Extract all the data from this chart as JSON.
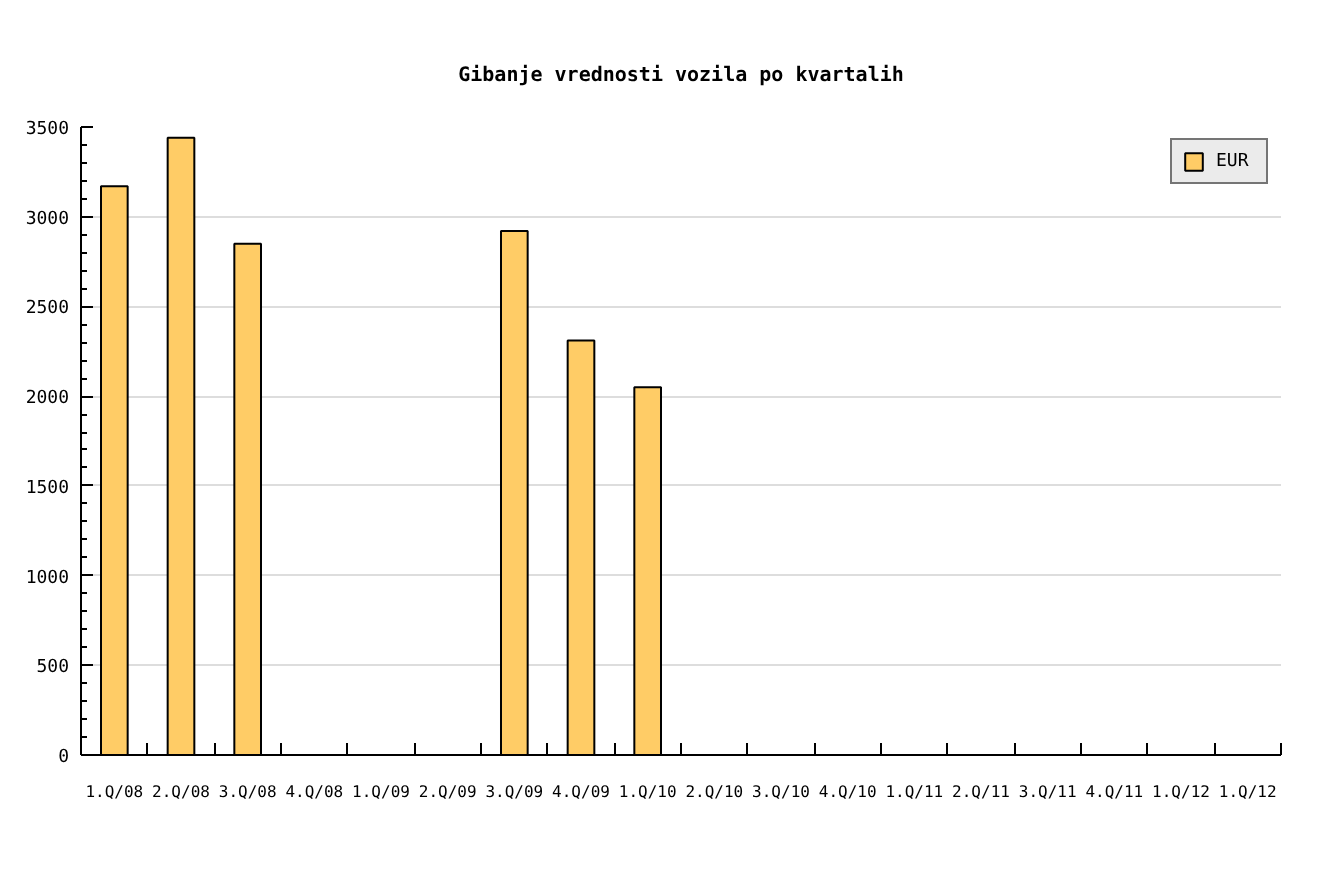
{
  "chart_data": {
    "type": "bar",
    "title": "Gibanje vrednosti vozila po kvartalih",
    "categories": [
      "1.Q/08",
      "2.Q/08",
      "3.Q/08",
      "4.Q/08",
      "1.Q/09",
      "2.Q/09",
      "3.Q/09",
      "4.Q/09",
      "1.Q/10",
      "2.Q/10",
      "3.Q/10",
      "4.Q/10",
      "1.Q/11",
      "2.Q/11",
      "3.Q/11",
      "4.Q/11",
      "1.Q/12",
      "1.Q/12"
    ],
    "series": [
      {
        "name": "EUR",
        "color": "#ffcc66",
        "values": [
          3170,
          3440,
          2850,
          null,
          null,
          null,
          2920,
          2310,
          2050,
          null,
          null,
          null,
          null,
          null,
          null,
          null,
          null,
          null
        ]
      }
    ],
    "ylim": [
      0,
      3500
    ],
    "yticks": [
      0,
      500,
      1000,
      1500,
      2000,
      2500,
      3000,
      3500
    ],
    "grid": "y",
    "legend": "top right"
  }
}
